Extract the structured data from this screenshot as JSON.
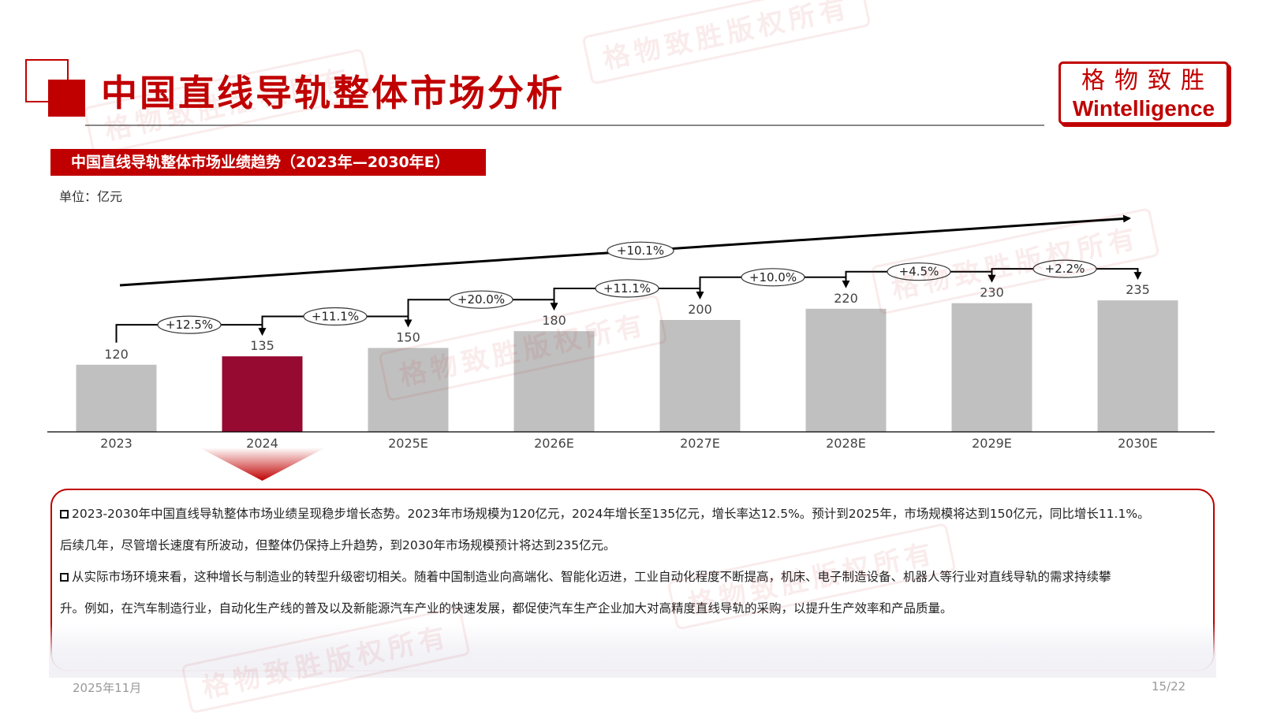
{
  "header": {
    "title": "中国直线导轨整体市场分析",
    "logo_cn": "格物致胜",
    "logo_en": "Wintelligence"
  },
  "subtitle_banner": "中国直线导轨整体市场业绩趋势（2023年—2030年E）",
  "unit_label": "单位：亿元",
  "watermark_text": "格物致胜版权所有",
  "colors": {
    "brand_red": "#c00000",
    "highlight_bar": "#960a32",
    "bar_gray": "#c0c0c0"
  },
  "chart_data": {
    "type": "bar",
    "categories": [
      "2023",
      "2024",
      "2025E",
      "2026E",
      "2027E",
      "2028E",
      "2029E",
      "2030E"
    ],
    "values": [
      120,
      135,
      150,
      180,
      200,
      220,
      230,
      235
    ],
    "value_labels": [
      "120",
      "135",
      "150",
      "180",
      "200",
      "220",
      "230",
      "235"
    ],
    "highlight_index": 1,
    "growth_labels": [
      "+12.5%",
      "+11.1%",
      "+20.0%",
      "+11.1%",
      "+10.0%",
      "+4.5%",
      "+2.2%"
    ],
    "overall_growth_label": "+10.1%",
    "ylim": [
      0,
      260
    ],
    "grid": false,
    "legend": "none"
  },
  "analysis": {
    "para1_line1": "2023-2030年中国直线导轨整体市场业绩呈现稳步增长态势。2023年市场规模为120亿元，2024年增长至135亿元，增长率达12.5%。预计到2025年，市场规模将达到150亿元，同比增长11.1%。",
    "para1_line2": "后续几年，尽管增长速度有所波动，但整体仍保持上升趋势，到2030年市场规模预计将达到235亿元。",
    "para2_line1": "从实际市场环境来看，这种增长与制造业的转型升级密切相关。随着中国制造业向高端化、智能化迈进，工业自动化程度不断提高，机床、电子制造设备、机器人等行业对直线导轨的需求持续攀",
    "para2_line2": "升。例如，在汽车制造行业，自动化生产线的普及以及新能源汽车产业的快速发展，都促使汽车生产企业加大对高精度直线导轨的采购，以提升生产效率和产品质量。"
  },
  "footer": {
    "date": "2025年11月",
    "page": "15/22"
  }
}
